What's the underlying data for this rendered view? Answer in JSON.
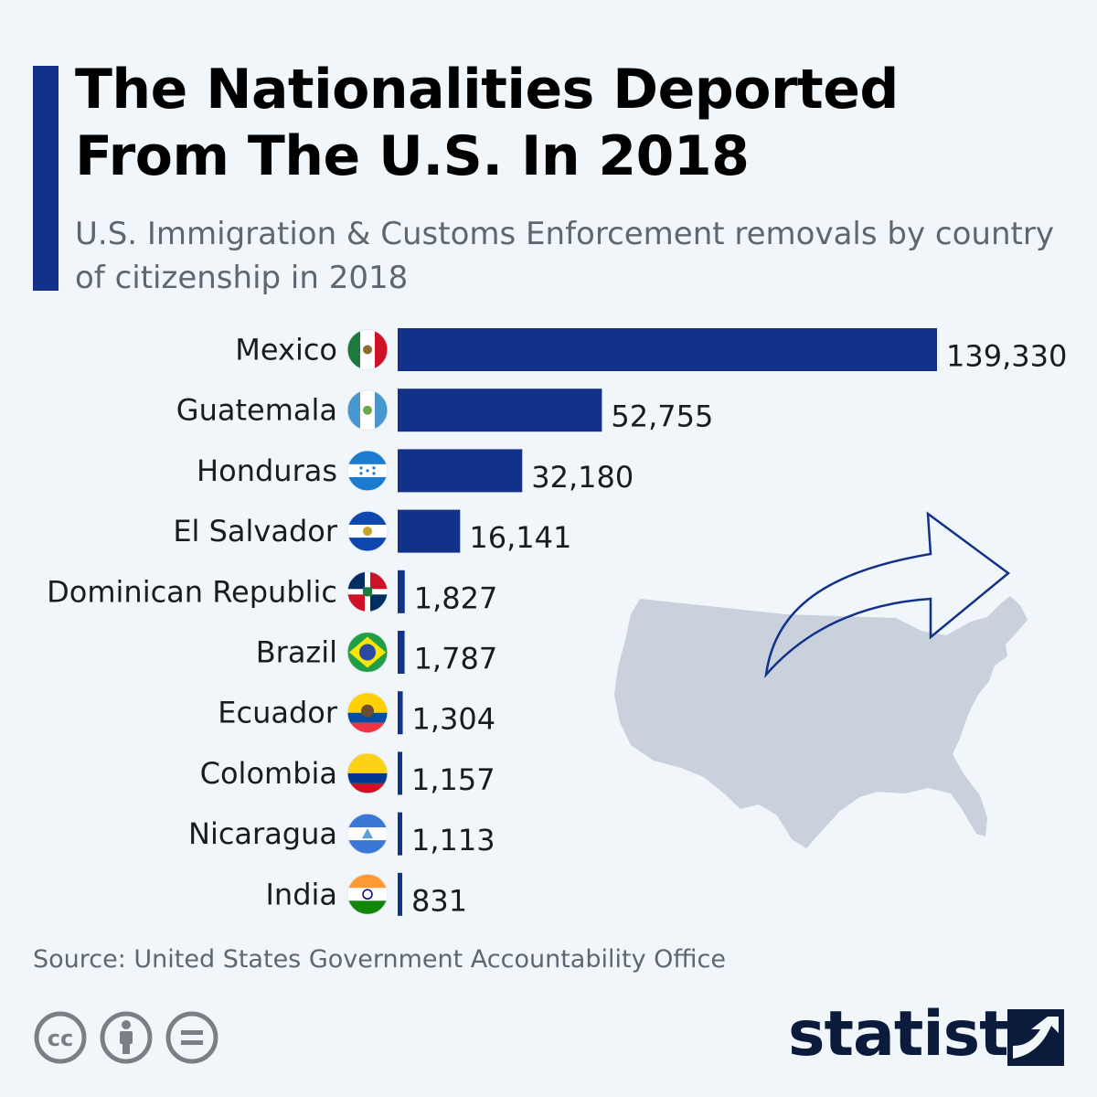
{
  "header": {
    "title": "The Nationalities Deported From The U.S. In 2018",
    "subtitle": "U.S. Immigration & Customs Enforcement removals by country of citizenship in 2018"
  },
  "footer": {
    "source": "Source: United States Government Accountability Office",
    "brand": "statista",
    "license_icons": [
      "creative-commons-icon",
      "attribution-icon",
      "no-derivatives-icon"
    ]
  },
  "colors": {
    "bar": "#12328a",
    "accent": "#12328a",
    "map": "#c8d1dc"
  },
  "chart_data": {
    "type": "bar",
    "orientation": "horizontal",
    "title": "The Nationalities Deported From The U.S. In 2018",
    "subtitle": "U.S. Immigration & Customs Enforcement removals by country of citizenship in 2018",
    "categories": [
      "Mexico",
      "Guatemala",
      "Honduras",
      "El Salvador",
      "Dominican Republic",
      "Brazil",
      "Ecuador",
      "Colombia",
      "Nicaragua",
      "India"
    ],
    "values": [
      139330,
      52755,
      32180,
      16141,
      1827,
      1787,
      1304,
      1157,
      1113,
      831
    ],
    "value_labels": [
      "139,330",
      "52,755",
      "32,180",
      "16,141",
      "1,827",
      "1,787",
      "1,304",
      "1,157",
      "1,113",
      "831"
    ],
    "flags": [
      "mexico-flag-icon",
      "guatemala-flag-icon",
      "honduras-flag-icon",
      "el-salvador-flag-icon",
      "dominican-republic-flag-icon",
      "brazil-flag-icon",
      "ecuador-flag-icon",
      "colombia-flag-icon",
      "nicaragua-flag-icon",
      "india-flag-icon"
    ],
    "xlim": [
      0,
      139330
    ],
    "grid": false,
    "legend": "none"
  }
}
